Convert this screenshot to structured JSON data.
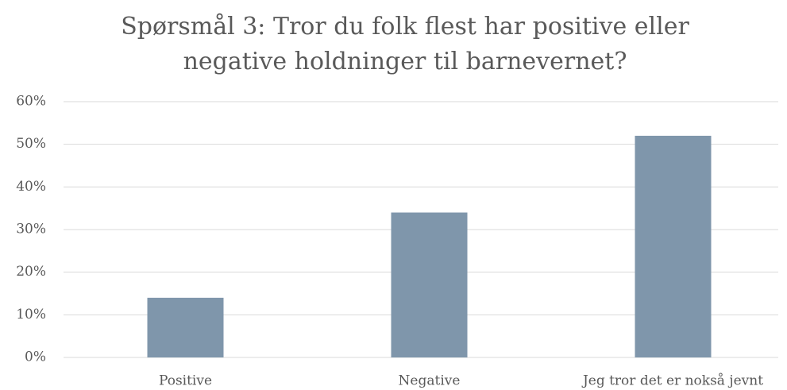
{
  "chart_data": {
    "type": "bar",
    "title": "Spørsmål 3: Tror du folk flest har positive eller negative holdninger til barnevernet?",
    "categories": [
      "Positive",
      "Negative",
      "Jeg tror det er nokså jevnt"
    ],
    "values": [
      14,
      34,
      52
    ],
    "color": "#7f96ab",
    "ylim": [
      0,
      60
    ],
    "yticks": [
      {
        "value": 0,
        "label": "0%"
      },
      {
        "value": 10,
        "label": "10%"
      },
      {
        "value": 20,
        "label": "20%"
      },
      {
        "value": 30,
        "label": "30%"
      },
      {
        "value": 40,
        "label": "40%"
      },
      {
        "value": 50,
        "label": "50%"
      },
      {
        "value": 60,
        "label": "60%"
      }
    ],
    "grid": true
  }
}
